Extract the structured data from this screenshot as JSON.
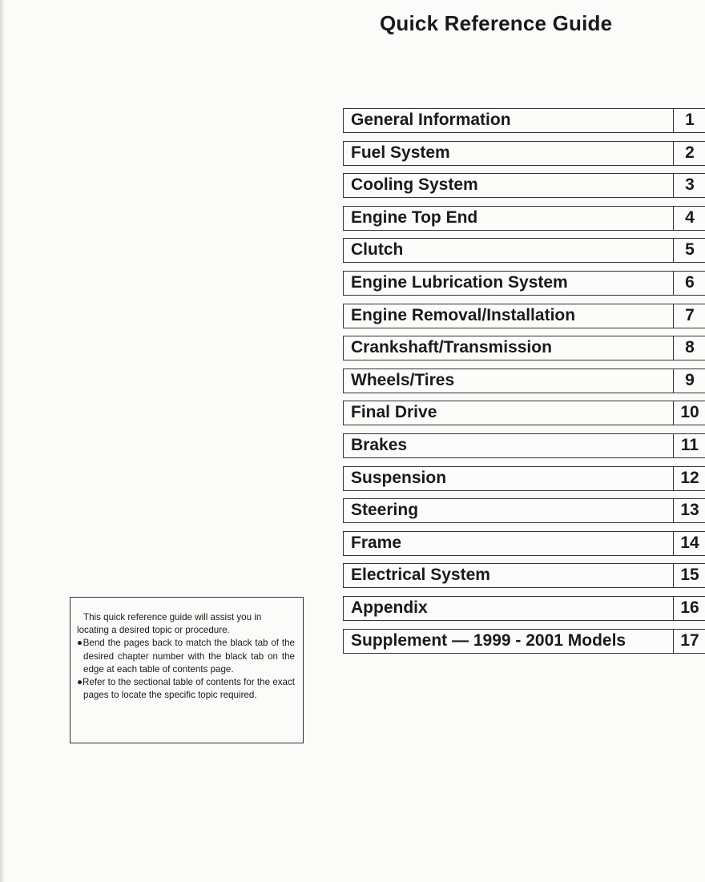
{
  "title": "Quick Reference Guide",
  "chapters": [
    {
      "name": "General Information",
      "number": "1"
    },
    {
      "name": "Fuel System",
      "number": "2"
    },
    {
      "name": "Cooling System",
      "number": "3"
    },
    {
      "name": "Engine Top End",
      "number": "4"
    },
    {
      "name": "Clutch",
      "number": "5"
    },
    {
      "name": "Engine Lubrication System",
      "number": "6"
    },
    {
      "name": "Engine Removal/Installation",
      "number": "7"
    },
    {
      "name": "Crankshaft/Transmission",
      "number": "8"
    },
    {
      "name": "Wheels/Tires",
      "number": "9"
    },
    {
      "name": "Final Drive",
      "number": "10"
    },
    {
      "name": "Brakes",
      "number": "11"
    },
    {
      "name": "Suspension",
      "number": "12"
    },
    {
      "name": "Steering",
      "number": "13"
    },
    {
      "name": "Frame",
      "number": "14"
    },
    {
      "name": "Electrical System",
      "number": "15"
    },
    {
      "name": "Appendix",
      "number": "16"
    },
    {
      "name": "Supplement —  1999 - 2001 Models",
      "number": "17"
    }
  ],
  "note": {
    "intro": "This quick reference guide will assist you in locating a desired topic or procedure.",
    "bullets": [
      "●Bend the pages back to match the black tab of the desired chapter number with the black tab on the edge at each table of contents page.",
      "●Refer to the sectional table of contents for the exact pages to locate the specific topic required."
    ]
  }
}
